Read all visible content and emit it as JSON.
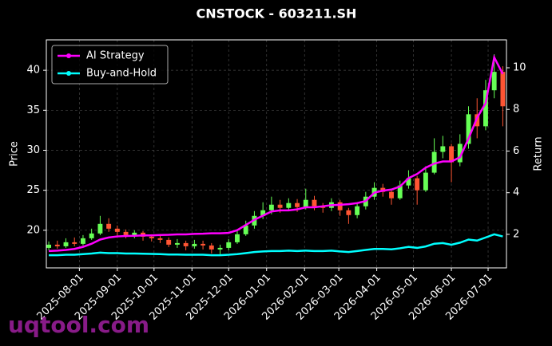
{
  "chart_data": {
    "type": "candlestick",
    "title": "CNSTOCK - 603211.SH",
    "ylabel": "Price",
    "y2label": "Return",
    "watermark": "uqtool.com",
    "x": [
      "2025-07-07",
      "2025-07-14",
      "2025-07-21",
      "2025-07-28",
      "2025-08-04",
      "2025-08-11",
      "2025-08-18",
      "2025-08-25",
      "2025-09-01",
      "2025-09-08",
      "2025-09-15",
      "2025-09-22",
      "2025-09-29",
      "2025-10-06",
      "2025-10-13",
      "2025-10-20",
      "2025-10-27",
      "2025-11-03",
      "2025-11-10",
      "2025-11-17",
      "2025-11-24",
      "2025-12-01",
      "2025-12-08",
      "2025-12-15",
      "2025-12-22",
      "2025-12-29",
      "2026-01-05",
      "2026-01-12",
      "2026-01-19",
      "2026-01-26",
      "2026-02-02",
      "2026-02-09",
      "2026-02-16",
      "2026-02-23",
      "2026-03-02",
      "2026-03-09",
      "2026-03-16",
      "2026-03-23",
      "2026-03-30",
      "2026-04-06",
      "2026-04-13",
      "2026-04-20",
      "2026-04-27",
      "2026-05-04",
      "2026-05-11",
      "2026-05-18",
      "2026-05-25",
      "2026-06-01",
      "2026-06-08",
      "2026-06-15",
      "2026-06-22",
      "2026-06-29",
      "2026-07-06",
      "2026-07-13"
    ],
    "open": [
      17.8,
      18.2,
      18.0,
      18.5,
      18.3,
      19.0,
      19.6,
      20.8,
      20.2,
      19.8,
      19.4,
      19.7,
      19.2,
      19.0,
      18.8,
      18.2,
      18.4,
      18.0,
      18.3,
      18.1,
      17.6,
      17.8,
      18.5,
      19.5,
      20.6,
      21.8,
      22.5,
      23.2,
      22.8,
      23.4,
      22.9,
      23.8,
      23.0,
      22.8,
      23.5,
      22.5,
      21.9,
      23.0,
      24.2,
      25.3,
      24.8,
      24.0,
      25.6,
      26.5,
      25.0,
      27.2,
      29.8,
      30.5,
      28.5,
      30.8,
      34.5,
      33.0,
      37.5,
      39.8
    ],
    "high": [
      18.6,
      18.7,
      19.0,
      19.1,
      19.4,
      20.2,
      21.8,
      21.5,
      20.6,
      20.1,
      20.0,
      19.9,
      19.5,
      19.3,
      19.1,
      18.9,
      18.7,
      18.8,
      18.7,
      18.4,
      18.2,
      18.9,
      20.0,
      21.2,
      22.4,
      23.5,
      24.2,
      23.8,
      24.0,
      23.9,
      25.2,
      24.3,
      23.4,
      24.0,
      23.8,
      22.8,
      23.5,
      24.8,
      26.0,
      25.8,
      25.2,
      26.2,
      27.5,
      26.8,
      28.0,
      31.5,
      31.8,
      30.8,
      32.0,
      35.5,
      36.5,
      38.8,
      42.0,
      40.5
    ],
    "low": [
      17.5,
      17.7,
      17.8,
      18.0,
      18.1,
      18.8,
      19.4,
      19.8,
      19.3,
      19.0,
      19.0,
      18.7,
      18.6,
      18.4,
      17.9,
      17.8,
      17.5,
      17.7,
      17.6,
      17.1,
      17.0,
      17.5,
      18.3,
      19.3,
      20.2,
      21.4,
      22.0,
      22.2,
      22.4,
      22.3,
      22.6,
      22.5,
      22.2,
      22.4,
      21.8,
      20.8,
      21.5,
      22.6,
      23.8,
      24.2,
      23.2,
      23.8,
      25.2,
      23.2,
      24.8,
      27.0,
      29.0,
      26.0,
      28.0,
      30.2,
      31.5,
      32.5,
      36.5,
      33.0
    ],
    "close": [
      18.2,
      18.0,
      18.5,
      18.3,
      19.0,
      19.6,
      20.8,
      20.2,
      19.8,
      19.4,
      19.7,
      19.2,
      19.0,
      18.8,
      18.2,
      18.4,
      18.0,
      18.3,
      18.1,
      17.6,
      17.8,
      18.5,
      19.5,
      20.6,
      21.8,
      22.5,
      23.2,
      22.8,
      23.4,
      22.9,
      23.8,
      23.0,
      22.8,
      23.5,
      22.5,
      21.9,
      23.0,
      24.2,
      25.3,
      24.8,
      24.0,
      25.6,
      26.5,
      25.0,
      27.2,
      29.8,
      30.5,
      28.5,
      30.8,
      34.5,
      33.0,
      37.5,
      39.8,
      35.5
    ],
    "up_color": "#66ff55",
    "down_color": "#ff5533",
    "series": [
      {
        "name": "AI Strategy",
        "color": "#ff00ff",
        "axis": "y2",
        "values": [
          1.2,
          1.22,
          1.25,
          1.3,
          1.4,
          1.55,
          1.75,
          1.85,
          1.9,
          1.92,
          1.93,
          1.95,
          1.95,
          1.97,
          1.98,
          2.0,
          2.0,
          2.02,
          2.03,
          2.05,
          2.05,
          2.07,
          2.2,
          2.45,
          2.7,
          2.9,
          3.1,
          3.15,
          3.15,
          3.2,
          3.3,
          3.3,
          3.35,
          3.4,
          3.42,
          3.45,
          3.5,
          3.6,
          4.0,
          4.1,
          4.15,
          4.3,
          4.7,
          4.9,
          5.2,
          5.4,
          5.5,
          5.5,
          5.7,
          6.6,
          7.6,
          8.3,
          10.5,
          9.7
        ]
      },
      {
        "name": "Buy-and-Hold",
        "color": "#00ffff",
        "axis": "y2",
        "values": [
          1.0,
          1.0,
          1.02,
          1.02,
          1.05,
          1.08,
          1.12,
          1.1,
          1.1,
          1.08,
          1.08,
          1.07,
          1.06,
          1.05,
          1.03,
          1.03,
          1.02,
          1.02,
          1.02,
          1.0,
          1.0,
          1.02,
          1.05,
          1.1,
          1.15,
          1.18,
          1.2,
          1.2,
          1.22,
          1.2,
          1.22,
          1.2,
          1.2,
          1.22,
          1.18,
          1.15,
          1.2,
          1.25,
          1.3,
          1.3,
          1.28,
          1.33,
          1.4,
          1.35,
          1.42,
          1.55,
          1.58,
          1.5,
          1.6,
          1.75,
          1.7,
          1.85,
          2.0,
          1.9
        ]
      }
    ],
    "xlim": [
      "2025-07-05",
      "2026-07-16"
    ],
    "xticks": [
      "2025-08-01",
      "2025-09-01",
      "2025-10-01",
      "2025-11-01",
      "2025-12-01",
      "2026-01-01",
      "2026-02-01",
      "2026-03-01",
      "2026-04-01",
      "2026-05-01",
      "2026-06-01",
      "2026-07-01"
    ],
    "ylim": [
      15.3,
      43.8
    ],
    "yticks": [
      20,
      25,
      30,
      35,
      40
    ],
    "y2lim": [
      0.39,
      11.34
    ],
    "y2ticks": [
      2,
      4,
      6,
      8,
      10
    ],
    "grid": true,
    "legend": "upper left"
  }
}
